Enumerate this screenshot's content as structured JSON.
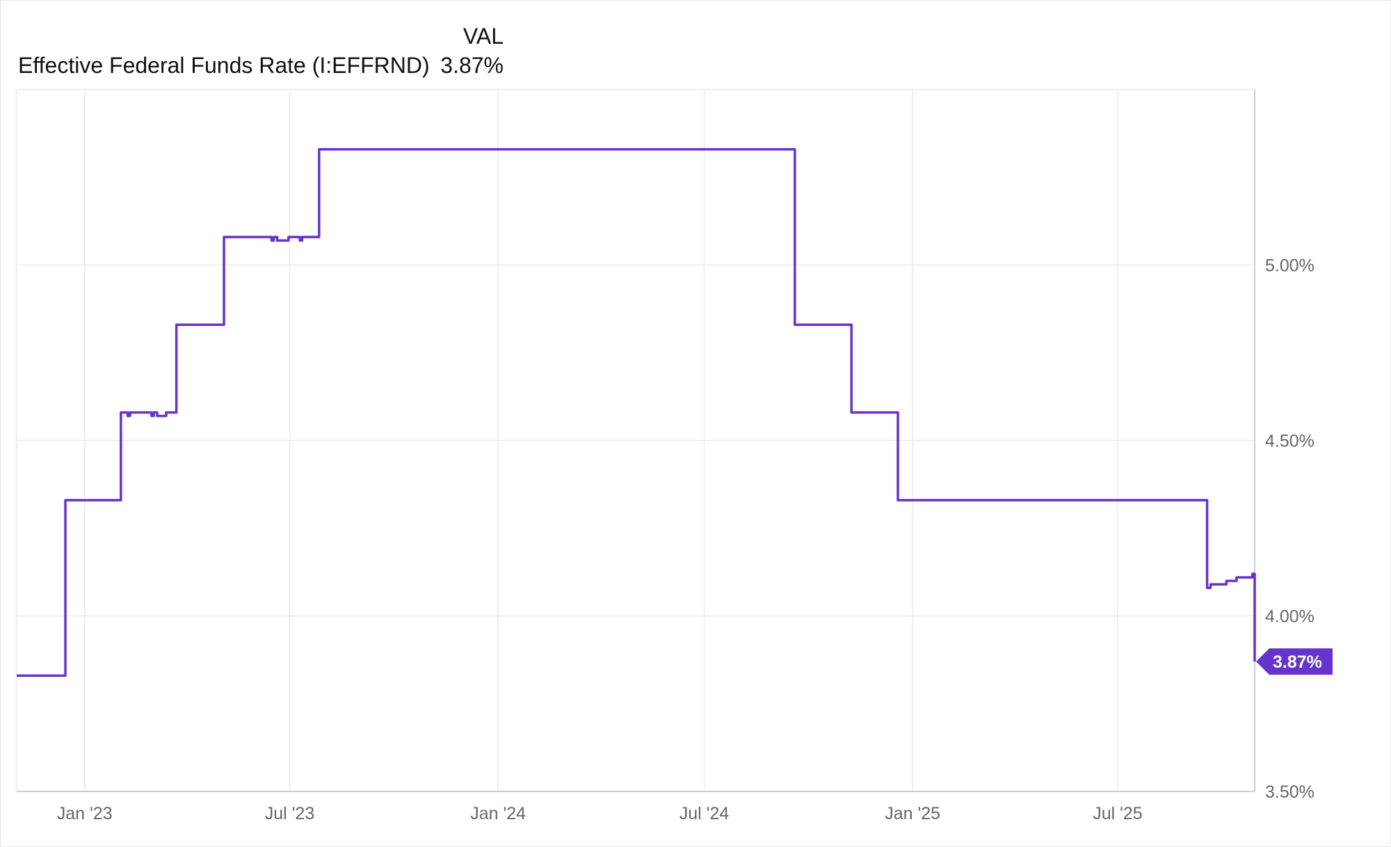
{
  "legend": {
    "column_header": "VAL",
    "series_name": "Effective Federal Funds Rate (I:EFFRND)",
    "series_value": "3.87%"
  },
  "colors": {
    "line": "#6633cc",
    "grid": "#ebebeb",
    "axis": "#cccccc",
    "tick": "#666666"
  },
  "chart_data": {
    "type": "line",
    "title": "Effective Federal Funds Rate (I:EFFRND)",
    "xlabel": "",
    "ylabel": "",
    "xlim": [
      "2022-11-02",
      "2025-10-30"
    ],
    "ylim": [
      3.5,
      5.5
    ],
    "grid": true,
    "legend_position": "top-left",
    "x_ticks": [
      {
        "date": "2023-01-01",
        "label": "Jan '23"
      },
      {
        "date": "2023-07-01",
        "label": "Jul '23"
      },
      {
        "date": "2024-01-01",
        "label": "Jan '24"
      },
      {
        "date": "2024-07-01",
        "label": "Jul '24"
      },
      {
        "date": "2025-01-01",
        "label": "Jan '25"
      },
      {
        "date": "2025-07-01",
        "label": "Jul '25"
      }
    ],
    "y_ticks": [
      {
        "value": 3.5,
        "label": "3.50%"
      },
      {
        "value": 4.0,
        "label": "4.00%"
      },
      {
        "value": 4.5,
        "label": "4.50%"
      },
      {
        "value": 5.0,
        "label": "5.00%"
      }
    ],
    "series": [
      {
        "name": "Effective Federal Funds Rate (I:EFFRND)",
        "step": true,
        "points": [
          [
            "2022-11-02",
            3.83
          ],
          [
            "2022-12-15",
            4.33
          ],
          [
            "2023-02-02",
            4.58
          ],
          [
            "2023-02-08",
            4.57
          ],
          [
            "2023-02-10",
            4.58
          ],
          [
            "2023-03-01",
            4.57
          ],
          [
            "2023-03-03",
            4.58
          ],
          [
            "2023-03-06",
            4.57
          ],
          [
            "2023-03-14",
            4.58
          ],
          [
            "2023-03-23",
            4.83
          ],
          [
            "2023-05-04",
            5.08
          ],
          [
            "2023-06-15",
            5.07
          ],
          [
            "2023-06-17",
            5.08
          ],
          [
            "2023-06-20",
            5.07
          ],
          [
            "2023-06-30",
            5.08
          ],
          [
            "2023-07-10",
            5.07
          ],
          [
            "2023-07-12",
            5.08
          ],
          [
            "2023-07-27",
            5.33
          ],
          [
            "2024-09-19",
            4.83
          ],
          [
            "2024-11-08",
            4.58
          ],
          [
            "2024-12-19",
            4.33
          ],
          [
            "2025-09-18",
            4.08
          ],
          [
            "2025-09-21",
            4.09
          ],
          [
            "2025-10-05",
            4.1
          ],
          [
            "2025-10-14",
            4.11
          ],
          [
            "2025-10-28",
            4.12
          ],
          [
            "2025-10-30",
            3.87
          ]
        ],
        "last_value": 3.87,
        "last_label": "3.87%"
      }
    ]
  }
}
